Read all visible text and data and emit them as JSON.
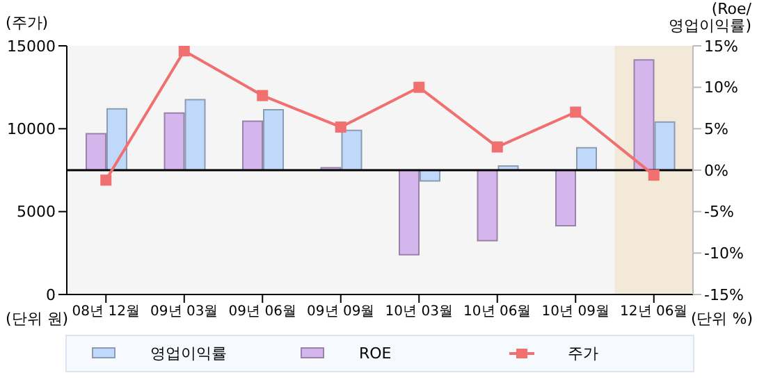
{
  "chart_data": {
    "type": "bar",
    "ylabel": "(주가)",
    "y2label": "(Roe/\n영업이익률)",
    "categories": [
      "08년 12월",
      "09년 03월",
      "09년 06월",
      "09년 09월",
      "10년 03월",
      "10년 06월",
      "10년 09월",
      "12년 06월"
    ],
    "series": [
      {
        "name": "영업이익률",
        "axis": "y2",
        "color": "#c0d9fa",
        "values": [
          7.4,
          8.5,
          7.3,
          4.8,
          -1.3,
          0.5,
          2.7,
          5.8
        ]
      },
      {
        "name": "ROE",
        "axis": "y2",
        "color": "#d4b5ec",
        "values": [
          4.4,
          6.9,
          5.9,
          0.3,
          -10.2,
          -8.5,
          -6.7,
          13.3
        ]
      },
      {
        "name": "주가",
        "type": "line",
        "axis": "y",
        "color": "#f07070",
        "marker": "square",
        "values": [
          6900,
          14700,
          12000,
          10100,
          12500,
          8900,
          11000,
          7200
        ]
      }
    ],
    "ylim": [
      0,
      15000
    ],
    "yticks": [
      0,
      5000,
      10000,
      15000
    ],
    "y2lim": [
      -15,
      15
    ],
    "y2ticks": [
      {
        "value": -15,
        "label": "-15%"
      },
      {
        "value": -10,
        "label": "-10%"
      },
      {
        "value": -5,
        "label": "-5%"
      },
      {
        "value": 0,
        "label": "0%"
      },
      {
        "value": 5,
        "label": "5%"
      },
      {
        "value": 10,
        "label": "10%"
      },
      {
        "value": 15,
        "label": "15%"
      }
    ],
    "ref_lines": [
      {
        "axis": "y2",
        "value": 0,
        "color": "#000000"
      }
    ],
    "bands": [
      {
        "axis": "x",
        "from": "12년 06월",
        "to": "12년 06월",
        "color": "#f3e9d8"
      }
    ],
    "annotations": [
      "(단위 원)",
      "(단위 %)"
    ],
    "grid": false,
    "legend": "bottom"
  }
}
